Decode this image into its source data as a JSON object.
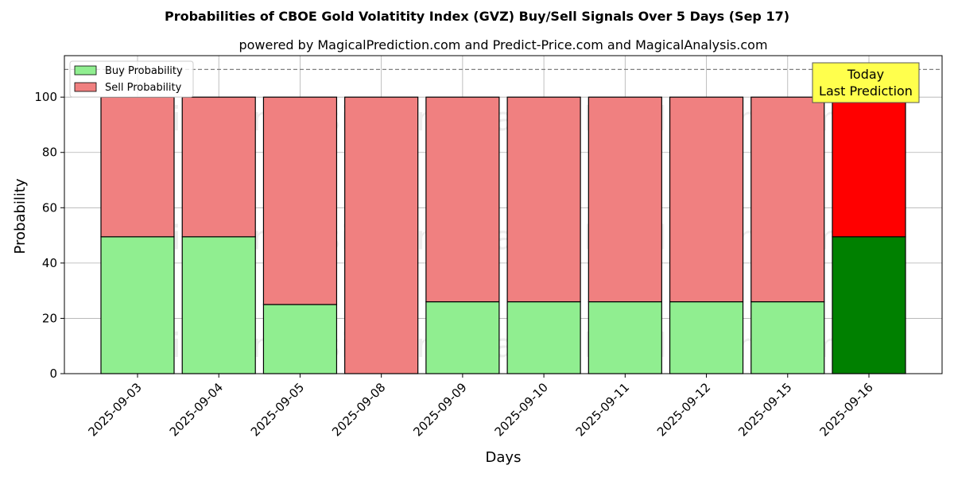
{
  "chart_data": {
    "type": "bar",
    "stacked": true,
    "title": "Probabilities of CBOE Gold Volatitity Index (GVZ) Buy/Sell Signals Over 5 Days (Sep 17)",
    "subtitle": "powered by MagicalPrediction.com and Predict-Price.com and MagicalAnalysis.com",
    "xlabel": "Days",
    "ylabel": "Probability",
    "ylim": [
      0,
      115
    ],
    "yticks": [
      0,
      20,
      40,
      60,
      80,
      100
    ],
    "reference_line": 110,
    "grid": true,
    "legend_position": "top-left",
    "categories": [
      "2025-09-03",
      "2025-09-04",
      "2025-09-05",
      "2025-09-08",
      "2025-09-09",
      "2025-09-10",
      "2025-09-11",
      "2025-09-12",
      "2025-09-15",
      "2025-09-16"
    ],
    "series": [
      {
        "name": "Buy Probability",
        "values": [
          49.5,
          49.5,
          25,
          0,
          26,
          26,
          26,
          26,
          26,
          49.5
        ],
        "color": "#90EE90",
        "highlight_color": "#008000"
      },
      {
        "name": "Sell Probability",
        "values": [
          50.5,
          50.5,
          75,
          100,
          74,
          74,
          74,
          74,
          74,
          50.5
        ],
        "color": "#F08080",
        "highlight_color": "#FF0000"
      }
    ],
    "highlight_index": 9,
    "annotation": {
      "line1": "Today",
      "line2": "Last Prediction",
      "background": "#FFFF4D"
    },
    "watermarks": [
      "MagicalAnalysis.com",
      "MagicalPrediction.com"
    ]
  }
}
